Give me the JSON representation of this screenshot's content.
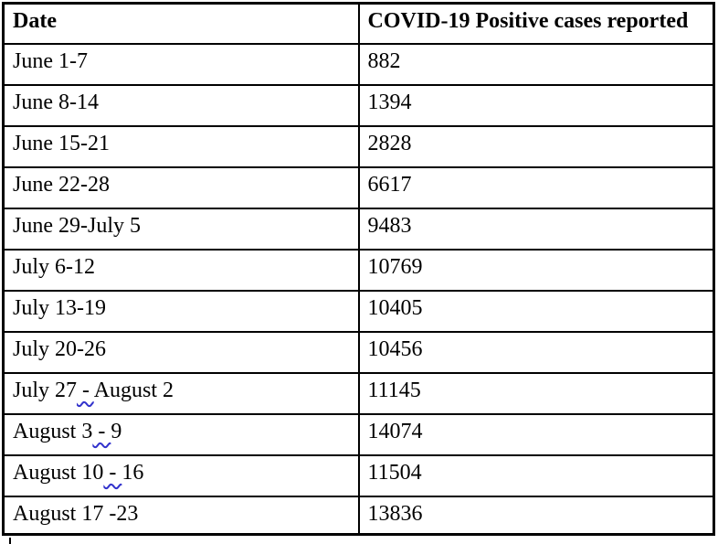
{
  "colors": {
    "table_border": "#000000",
    "text": "#000000",
    "background": "#ffffff",
    "grammar_squiggle": "#3333cc"
  },
  "table": {
    "header": {
      "date_label": "Date",
      "cases_label": "COVID-19 Positive cases reported"
    },
    "rows": [
      {
        "date": [
          {
            "text": "June 1-7",
            "wavy": false
          }
        ],
        "cases": "882"
      },
      {
        "date": [
          {
            "text": "June 8-14",
            "wavy": false
          }
        ],
        "cases": "1394"
      },
      {
        "date": [
          {
            "text": "June 15-21",
            "wavy": false
          }
        ],
        "cases": "2828"
      },
      {
        "date": [
          {
            "text": "June 22-28",
            "wavy": false
          }
        ],
        "cases": "6617"
      },
      {
        "date": [
          {
            "text": "June 29-July 5",
            "wavy": false
          }
        ],
        "cases": "9483"
      },
      {
        "date": [
          {
            "text": "July 6-12",
            "wavy": false
          }
        ],
        "cases": "10769"
      },
      {
        "date": [
          {
            "text": "July 13-19",
            "wavy": false
          }
        ],
        "cases": "10405"
      },
      {
        "date": [
          {
            "text": "July 20-26",
            "wavy": false
          }
        ],
        "cases": "10456"
      },
      {
        "date": [
          {
            "text": "July 27",
            "wavy": false
          },
          {
            "text": " - ",
            "wavy": true
          },
          {
            "text": "August 2",
            "wavy": false
          }
        ],
        "cases": "11145"
      },
      {
        "date": [
          {
            "text": "August 3",
            "wavy": false
          },
          {
            "text": " - ",
            "wavy": true
          },
          {
            "text": "9",
            "wavy": false
          }
        ],
        "cases": "14074"
      },
      {
        "date": [
          {
            "text": "August 10",
            "wavy": false
          },
          {
            "text": " - ",
            "wavy": true
          },
          {
            "text": "16",
            "wavy": false
          }
        ],
        "cases": "11504"
      },
      {
        "date": [
          {
            "text": "August 17 -23",
            "wavy": false
          }
        ],
        "cases": "13836"
      }
    ]
  }
}
